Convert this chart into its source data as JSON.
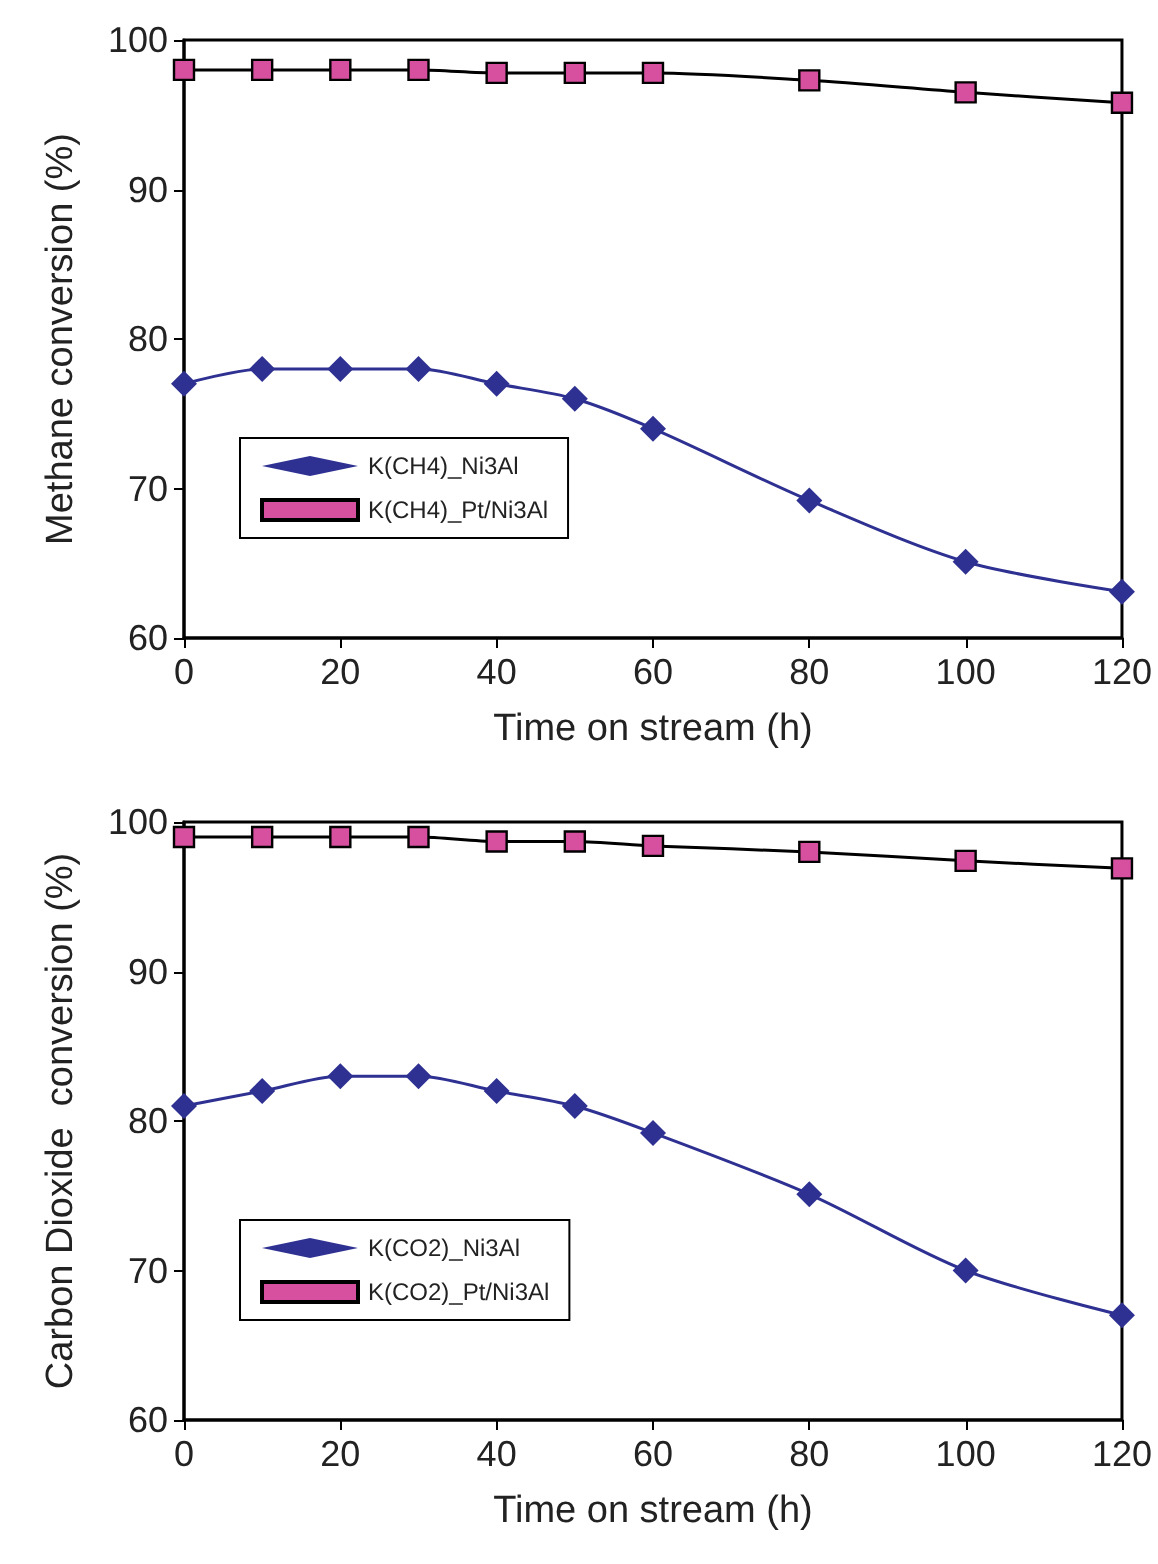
{
  "chart_data": [
    {
      "type": "line",
      "xlabel": "Time on stream (h)",
      "ylabel": "Methane conversion (%)",
      "x": [
        0,
        10,
        20,
        30,
        40,
        50,
        60,
        80,
        100,
        120
      ],
      "series": [
        {
          "name": "K(CH4)_Ni3Al",
          "color": "#2e3192",
          "marker": "diamond",
          "values": [
            77,
            78,
            78,
            78,
            77,
            76,
            74,
            69.2,
            65.1,
            63.1
          ]
        },
        {
          "name": "K(CH4)_Pt/Ni3Al",
          "color": "#d6509f",
          "marker": "square",
          "values": [
            98,
            98,
            98,
            98,
            97.8,
            97.8,
            97.8,
            97.3,
            96.5,
            95.8
          ]
        }
      ],
      "xlim": [
        0,
        120
      ],
      "xticks": [
        0,
        20,
        40,
        60,
        80,
        100,
        120
      ],
      "ylim": [
        60,
        100
      ],
      "yticks": [
        60,
        70,
        80,
        90,
        100
      ],
      "grid": false,
      "legend": "bottom left"
    },
    {
      "type": "line",
      "xlabel": "Time on stream (h)",
      "ylabel": "Carbon Dioxide  conversion (%)",
      "x": [
        0,
        10,
        20,
        30,
        40,
        50,
        60,
        80,
        100,
        120
      ],
      "series": [
        {
          "name": "K(CO2)_Ni3Al",
          "color": "#2e3192",
          "marker": "diamond",
          "values": [
            81,
            82,
            83,
            83,
            82,
            81,
            79.2,
            75.1,
            70,
            67
          ]
        },
        {
          "name": "K(CO2)_Pt/Ni3Al",
          "color": "#d6509f",
          "marker": "square",
          "values": [
            99,
            99,
            99,
            99,
            98.7,
            98.7,
            98.4,
            98,
            97.4,
            96.9
          ]
        }
      ],
      "xlim": [
        0,
        120
      ],
      "xticks": [
        0,
        20,
        40,
        60,
        80,
        100,
        120
      ],
      "ylim": [
        60,
        100
      ],
      "yticks": [
        60,
        70,
        80,
        90,
        100
      ],
      "grid": false,
      "legend": "bottom left"
    }
  ]
}
